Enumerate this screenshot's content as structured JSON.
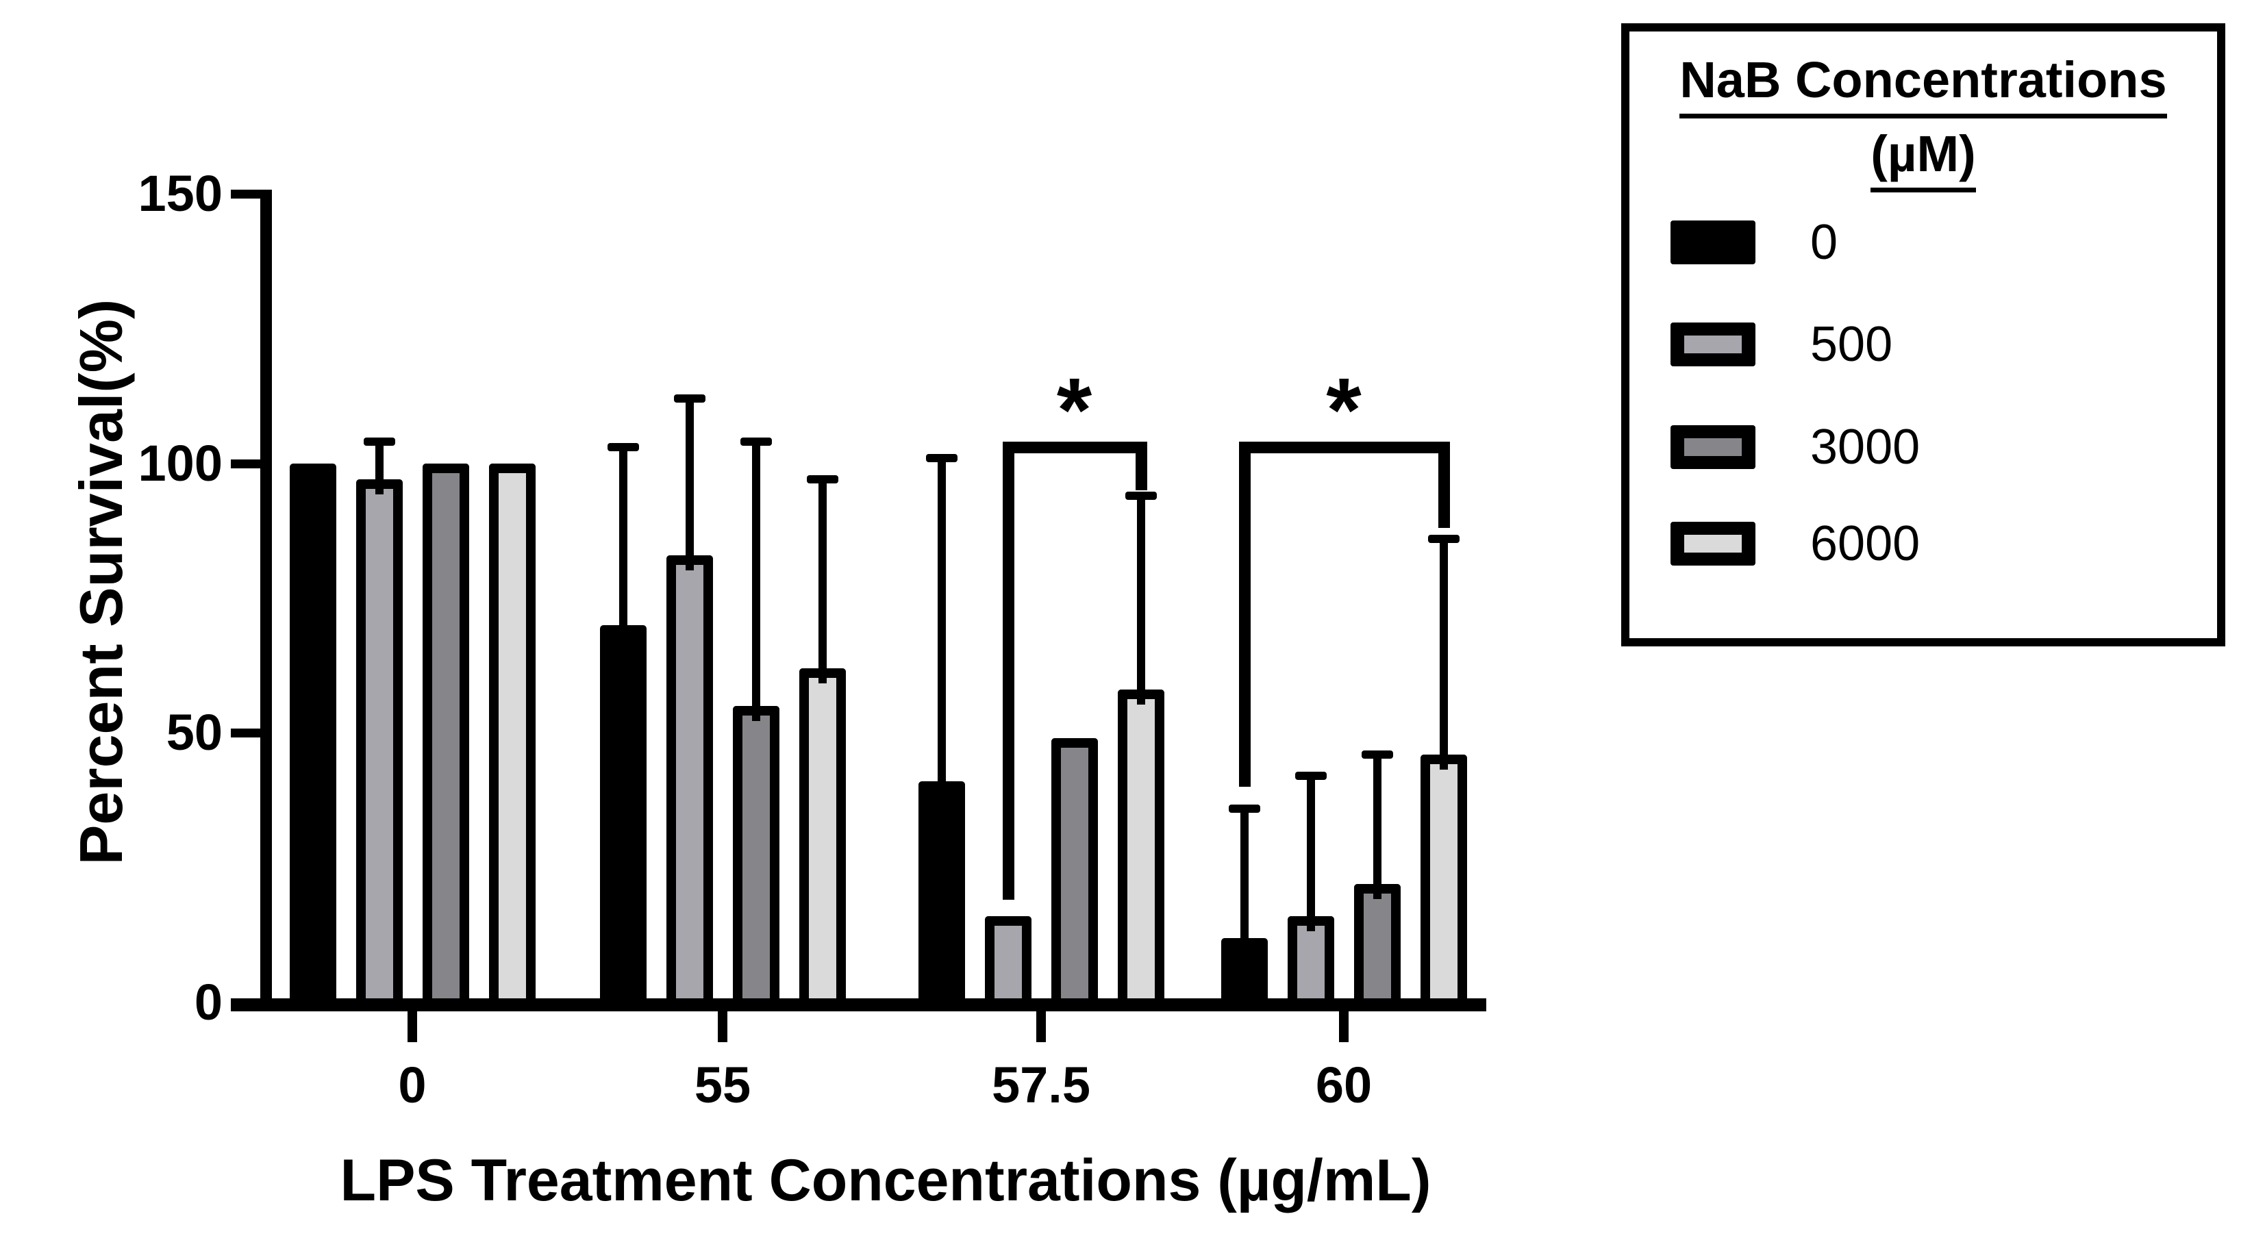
{
  "y_axis": {
    "label": "Percent Survival(%)",
    "ticks": [
      0,
      50,
      100,
      150
    ],
    "range": [
      0,
      150
    ]
  },
  "x_axis": {
    "label": "LPS Treatment Concentrations (µg/mL)",
    "categories": [
      "0",
      "55",
      "57.5",
      "60"
    ]
  },
  "legend": {
    "title_line1": "NaB Concentrations",
    "title_line2": "(µM)",
    "items": [
      {
        "label": "0",
        "color": "#000000"
      },
      {
        "label": "500",
        "color": "#a6a6ac"
      },
      {
        "label": "3000",
        "color": "#85858a"
      },
      {
        "label": "6000",
        "color": "#dadada"
      }
    ]
  },
  "chart_data": {
    "type": "bar",
    "grouped": true,
    "title": "",
    "xlabel": "LPS Treatment Concentrations (µg/mL)",
    "ylabel": "Percent Survival(%)",
    "ylim": [
      0,
      150
    ],
    "grid": false,
    "legend_position": "outside-top-right",
    "categories": [
      "0",
      "55",
      "57.5",
      "60"
    ],
    "series": [
      {
        "name": "0",
        "color": "#000000",
        "values": [
          100,
          70,
          41,
          12
        ],
        "sd": [
          null,
          33,
          60,
          24
        ]
      },
      {
        "name": "500",
        "color": "#a6a6ac",
        "values": [
          97,
          83,
          16,
          16
        ],
        "sd": [
          7,
          29,
          null,
          26
        ]
      },
      {
        "name": "3000",
        "color": "#85858a",
        "values": [
          100,
          55,
          49,
          22
        ],
        "sd": [
          null,
          49,
          null,
          24
        ]
      },
      {
        "name": "6000",
        "color": "#dadada",
        "values": [
          100,
          62,
          58,
          46
        ],
        "sd": [
          null,
          35,
          36,
          40
        ]
      }
    ],
    "annotations": [
      {
        "label": "*",
        "group_index": 2,
        "left_series": 1,
        "right_series": 3,
        "top_value": 104,
        "left_end_value": 19,
        "right_end_value": 95
      },
      {
        "label": "*",
        "group_index": 3,
        "left_series": 0,
        "right_series": 3,
        "top_value": 104,
        "left_end_value": 40,
        "right_end_value": 88
      }
    ]
  }
}
